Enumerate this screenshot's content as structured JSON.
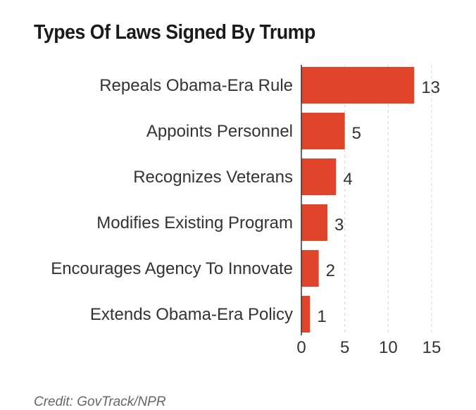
{
  "chart_data": {
    "type": "bar",
    "orientation": "horizontal",
    "title": "Types Of Laws Signed By Trump",
    "categories": [
      "Repeals Obama-Era Rule",
      "Appoints Personnel",
      "Recognizes Veterans",
      "Modifies Existing Program",
      "Encourages Agency To Innovate",
      "Extends Obama-Era Policy"
    ],
    "values": [
      13,
      5,
      4,
      3,
      2,
      1
    ],
    "xticks": [
      0,
      5,
      10,
      15
    ],
    "xlim": [
      0,
      15
    ],
    "xlabel": "",
    "ylabel": "",
    "grid": "vertical dashed",
    "bar_color": "#e0452b",
    "data_labels": true
  },
  "credit": "Credit: GovTrack/NPR"
}
